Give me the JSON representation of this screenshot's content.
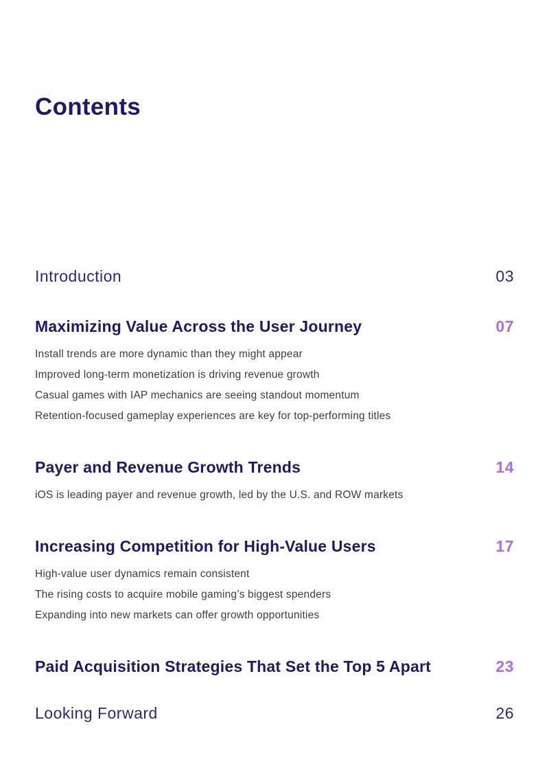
{
  "page": {
    "title": "Contents"
  },
  "colors": {
    "heading_navy": "#1d1a6e",
    "regular_navy": "#2b2686",
    "page_number_purple": "#b16be4",
    "subitem_gray": "#3d3d3d",
    "background": "#ffffff"
  },
  "toc": {
    "entries": [
      {
        "title": "Introduction",
        "page": "03",
        "subitems": []
      },
      {
        "title": "Maximizing Value Across the User Journey",
        "page": "07",
        "subitems": [
          "Install trends are more dynamic than they might appear",
          "Improved long-term monetization is driving revenue growth",
          "Casual games with IAP mechanics are seeing standout momentum",
          "Retention-focused gameplay experiences are key for top-performing titles"
        ]
      },
      {
        "title": "Payer and Revenue Growth Trends",
        "page": "14",
        "subitems": [
          "iOS is leading payer and revenue growth, led by the U.S. and ROW markets"
        ]
      },
      {
        "title": "Increasing Competition for High-Value Users",
        "page": "17",
        "subitems": [
          "High-value user dynamics remain consistent",
          "The rising costs to acquire mobile gaming’s biggest spenders",
          "Expanding into new markets can offer growth opportunities"
        ]
      },
      {
        "title": "Paid Acquisition Strategies That Set the Top 5 Apart",
        "page": "23",
        "subitems": []
      },
      {
        "title": "Looking Forward",
        "page": "26",
        "subitems": []
      }
    ]
  }
}
